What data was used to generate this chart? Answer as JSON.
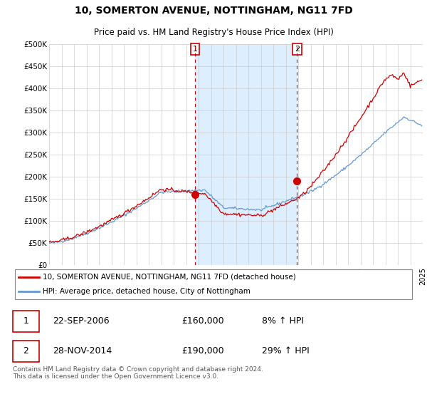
{
  "title": "10, SOMERTON AVENUE, NOTTINGHAM, NG11 7FD",
  "subtitle": "Price paid vs. HM Land Registry's House Price Index (HPI)",
  "ylim": [
    0,
    500000
  ],
  "yticks": [
    0,
    50000,
    100000,
    150000,
    200000,
    250000,
    300000,
    350000,
    400000,
    450000,
    500000
  ],
  "ytick_labels": [
    "£0",
    "£50K",
    "£100K",
    "£150K",
    "£200K",
    "£250K",
    "£300K",
    "£350K",
    "£400K",
    "£450K",
    "£500K"
  ],
  "hpi_color": "#6699cc",
  "price_color": "#cc0000",
  "shade_color": "#ddeeff",
  "grid_color": "#cccccc",
  "sale1_x": 2006.72,
  "sale1_y": 160000,
  "sale1_label": "1",
  "sale1_date": "22-SEP-2006",
  "sale1_price": "£160,000",
  "sale1_hpi": "8% ↑ HPI",
  "sale2_x": 2014.9,
  "sale2_y": 190000,
  "sale2_label": "2",
  "sale2_date": "28-NOV-2014",
  "sale2_price": "£190,000",
  "sale2_hpi": "29% ↑ HPI",
  "legend_line1": "10, SOMERTON AVENUE, NOTTINGHAM, NG11 7FD (detached house)",
  "legend_line2": "HPI: Average price, detached house, City of Nottingham",
  "footer": "Contains HM Land Registry data © Crown copyright and database right 2024.\nThis data is licensed under the Open Government Licence v3.0.",
  "xlim_left": 1995,
  "xlim_right": 2025
}
